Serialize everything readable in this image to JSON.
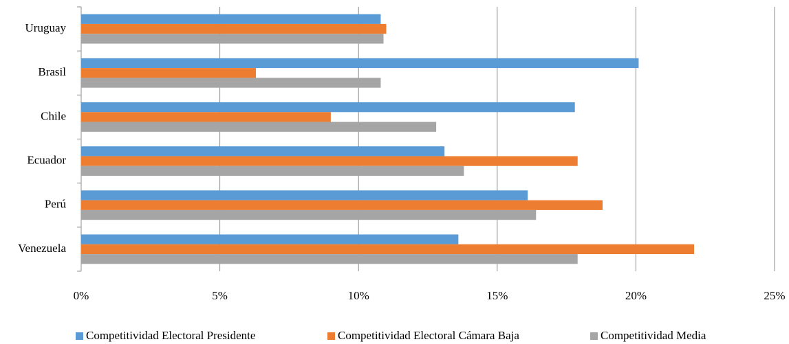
{
  "chart_data": {
    "type": "hbar",
    "categories": [
      "Uruguay",
      "Brasil",
      "Chile",
      "Ecuador",
      "Perú",
      "Venezuela"
    ],
    "series": [
      {
        "name": "Competitividad Electoral Presidente",
        "color": "#5b9bd5",
        "values": [
          10.8,
          20.1,
          17.8,
          13.1,
          16.1,
          13.6
        ]
      },
      {
        "name": "Competitividad Electoral Cámara Baja",
        "color": "#ed7d31",
        "values": [
          11.0,
          6.3,
          9.0,
          17.9,
          18.8,
          22.1
        ]
      },
      {
        "name": "Competitividad Media",
        "color": "#a5a5a5",
        "values": [
          10.9,
          10.8,
          12.8,
          13.8,
          16.4,
          17.9
        ]
      }
    ],
    "xlim": [
      0,
      25
    ],
    "xticks": [
      {
        "value": 0,
        "label": "0%"
      },
      {
        "value": 5,
        "label": "5%"
      },
      {
        "value": 10,
        "label": "10%"
      },
      {
        "value": 15,
        "label": "15%"
      },
      {
        "value": 20,
        "label": "20%"
      },
      {
        "value": 25,
        "label": "25%"
      }
    ],
    "grid": true,
    "legend": "bottom"
  }
}
